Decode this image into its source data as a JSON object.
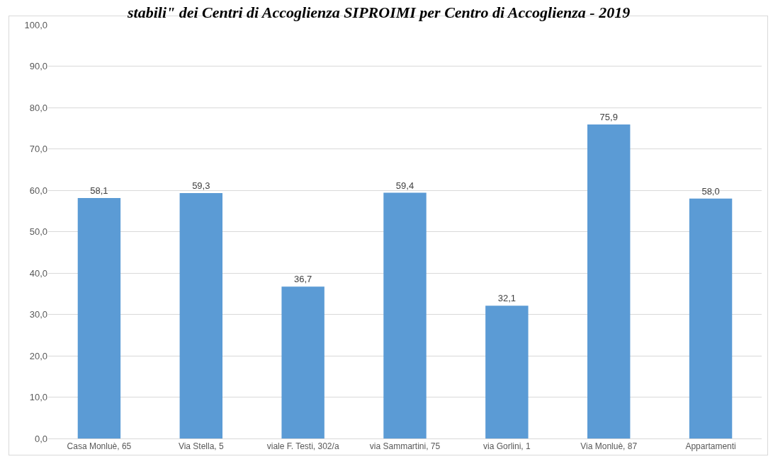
{
  "chart_data": {
    "type": "bar",
    "title": "stabili\" dei Centri di Accoglienza SIPROIMI per Centro di Accoglienza - 2019",
    "categories": [
      "Casa Monluè, 65",
      "Via Stella, 5",
      "viale F. Testi, 302/a",
      "via Sammartini, 75",
      "via Gorlini, 1",
      "Via Monluè, 87",
      "Appartamenti"
    ],
    "values": [
      58.1,
      59.3,
      36.7,
      59.4,
      32.1,
      75.9,
      58.0
    ],
    "value_labels": [
      "58,1",
      "59,3",
      "36,7",
      "59,4",
      "32,1",
      "75,9",
      "58,0"
    ],
    "color": "#5b9bd5",
    "ylim": [
      0,
      100
    ],
    "yticks": [
      {
        "value": 0,
        "label": "0,0"
      },
      {
        "value": 10,
        "label": "10,0"
      },
      {
        "value": 20,
        "label": "20,0"
      },
      {
        "value": 30,
        "label": "30,0"
      },
      {
        "value": 40,
        "label": "40,0"
      },
      {
        "value": 50,
        "label": "50,0"
      },
      {
        "value": 60,
        "label": "60,0"
      },
      {
        "value": 70,
        "label": "70,0"
      },
      {
        "value": 80,
        "label": "80,0"
      },
      {
        "value": 90,
        "label": "90,0"
      },
      {
        "value": 100,
        "label": "100,0"
      }
    ],
    "grid": "y",
    "legend": false
  }
}
